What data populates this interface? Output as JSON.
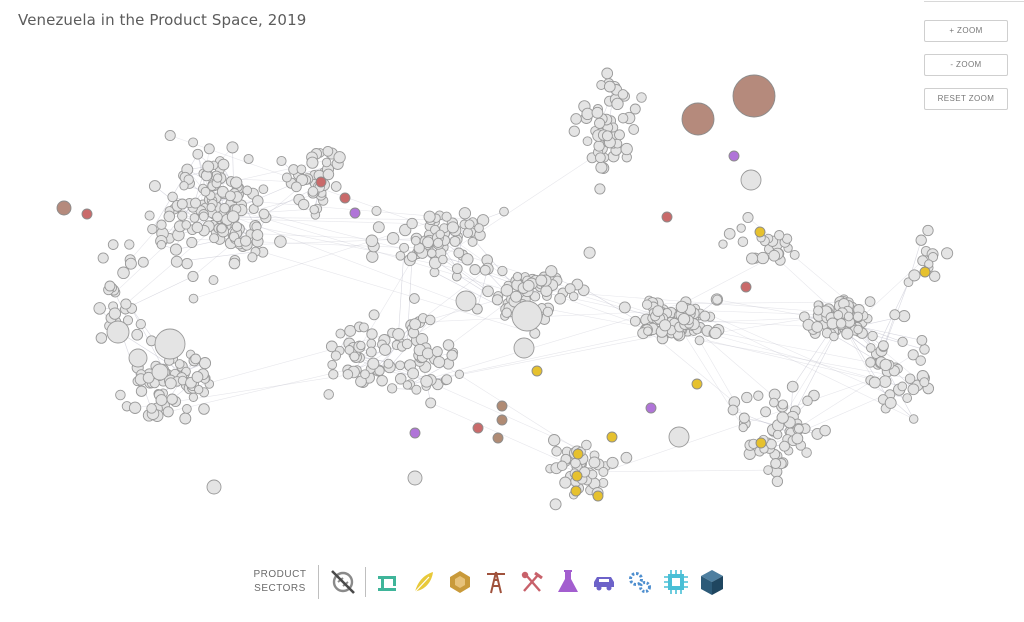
{
  "title": "Venezuela in the Product Space, 2019",
  "controls": {
    "zoom_in": "+ ZOOM",
    "zoom_out": "- ZOOM",
    "reset_zoom": "RESET ZOOM"
  },
  "legend": {
    "label_line1": "PRODUCT",
    "label_line2": "SECTORS",
    "sectors": [
      {
        "name": "toggle-all-sectors-icon",
        "color": "#4a4a4a"
      },
      {
        "name": "textiles-sewing-machine-icon",
        "color": "#3fb59a"
      },
      {
        "name": "agriculture-leaf-icon",
        "color": "#e8c93a"
      },
      {
        "name": "stone-gem-icon",
        "color": "#c99a3a"
      },
      {
        "name": "minerals-oil-rig-icon",
        "color": "#a0523c"
      },
      {
        "name": "metals-hammer-pick-icon",
        "color": "#c8616a"
      },
      {
        "name": "chemicals-flask-icon",
        "color": "#a35ecf"
      },
      {
        "name": "vehicles-car-icon",
        "color": "#6d62c9"
      },
      {
        "name": "machinery-gears-icon",
        "color": "#4f8fcf"
      },
      {
        "name": "electronics-chip-icon",
        "color": "#49bfd6"
      },
      {
        "name": "other-box-icon",
        "color": "#2c5a78"
      }
    ]
  },
  "network": {
    "node_fill": "#e4e4e4",
    "node_stroke": "#9a9a9a",
    "edge_color": "#b8b8c6",
    "highlight_colors": {
      "brown": "#b58a7c",
      "red": "#c96a6a",
      "purple": "#b074d8",
      "yellow": "#e6c12e",
      "tan": "#b08b74"
    }
  }
}
